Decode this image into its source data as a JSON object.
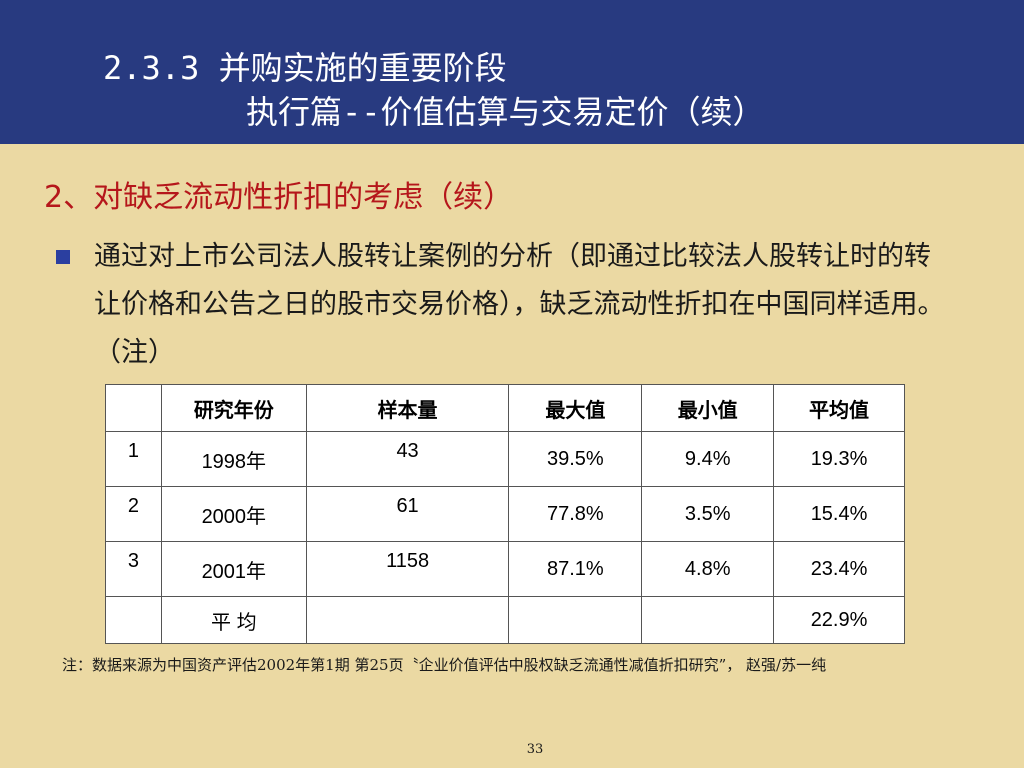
{
  "header": {
    "title_line1": "2.3.3 并购实施的重要阶段",
    "title_line2": "执行篇--价值估算与交易定价（续）"
  },
  "subheading": "2、对缺乏流动性折扣的考虑（续）",
  "bullet": "通过对上市公司法人股转让案例的分析（即通过比较法人股转让时的转让价格和公告之日的股市交易价格），缺乏流动性折扣在中国同样适用。（注）",
  "table": {
    "headers": [
      "",
      "研究年份",
      "样本量",
      "最大值",
      "最小值",
      "平均值"
    ],
    "rows": [
      [
        "1",
        "1998年",
        "43",
        "39.5%",
        "9.4%",
        "19.3%"
      ],
      [
        "2",
        "2000年",
        "61",
        "77.8%",
        "3.5%",
        "15.4%"
      ],
      [
        "3",
        "2001年",
        "1158",
        "87.1%",
        "4.8%",
        "23.4%"
      ],
      [
        "",
        "平 均",
        "",
        "",
        "",
        "22.9%"
      ]
    ]
  },
  "footnote": "注：数据来源为中国资产评估2002年第1期 第25页〝企业价值评估中股权缺乏流通性减值折扣研究”， 赵强/苏一纯",
  "page_number": "33"
}
